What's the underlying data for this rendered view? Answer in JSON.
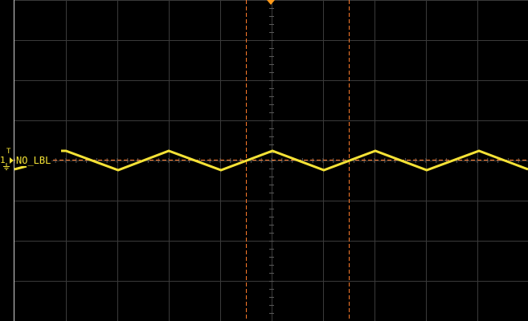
{
  "channel": {
    "number": "1",
    "label": "NO_LBL",
    "trace_color": "#f4e236"
  },
  "colors": {
    "background": "#000000",
    "grid": "#3a3a3a",
    "cursor": "#ff7a2a",
    "trigger_marker": "#ff9a1a"
  },
  "icons": {
    "trigger_position": "trigger-position-marker-icon",
    "ground": "ground-icon",
    "channel_offset_arrow": "channel-offset-arrow-icon"
  }
}
